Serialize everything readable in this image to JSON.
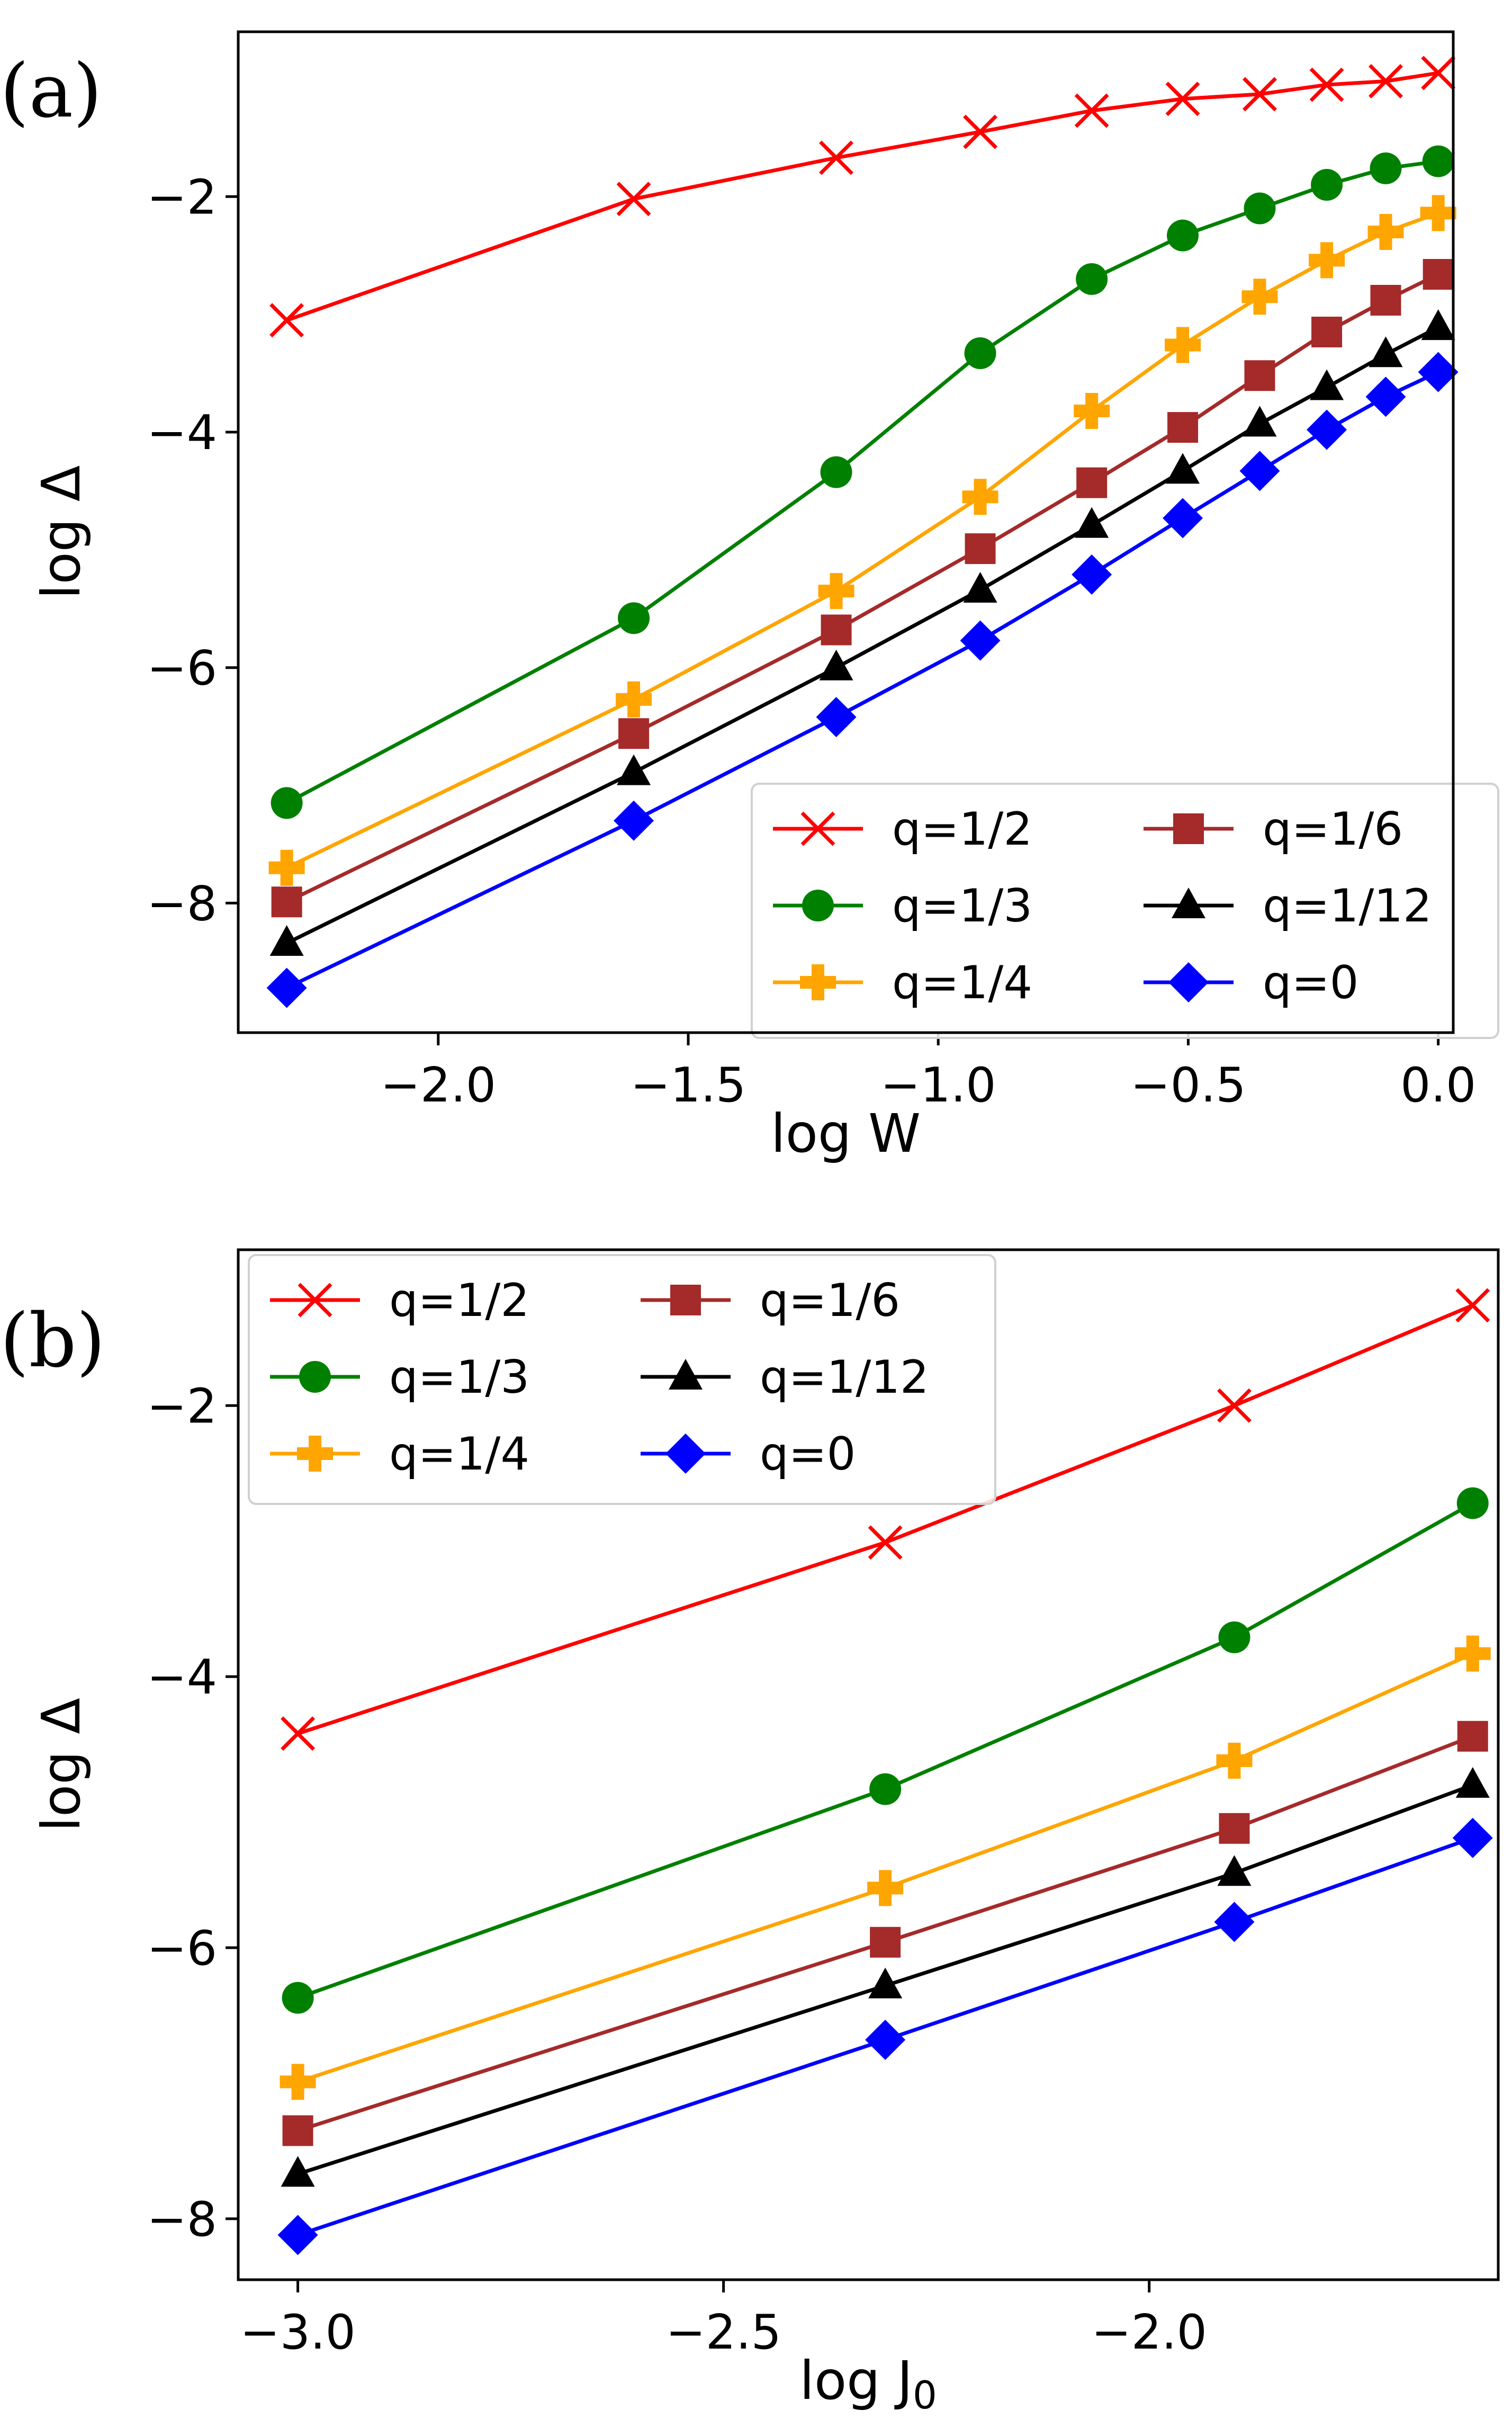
{
  "chart_data": [
    {
      "type": "line",
      "panel_label": "(a)",
      "xlabel": "log W",
      "ylabel": "log Δ",
      "xlim": [
        -2.4,
        0.03
      ],
      "ylim": [
        -9.1,
        -0.6
      ],
      "xticks": [
        -2.0,
        -1.5,
        -1.0,
        -0.5,
        0.0
      ],
      "xtick_labels": [
        "−2.0",
        "−1.5",
        "−1.0",
        "−0.5",
        "0.0"
      ],
      "yticks": [
        -8,
        -6,
        -4,
        -2
      ],
      "ytick_labels": [
        "−8",
        "−6",
        "−4",
        "−2"
      ],
      "legend_position": "lower-right",
      "legend_columns": 2,
      "x": [
        -2.303,
        -1.609,
        -1.204,
        -0.916,
        -0.693,
        -0.511,
        -0.357,
        -0.223,
        -0.105,
        0.0
      ],
      "series": [
        {
          "name": "q=1/2",
          "color": "#ff0000",
          "marker": "x",
          "values": [
            -3.05,
            -2.02,
            -1.67,
            -1.45,
            -1.27,
            -1.17,
            -1.13,
            -1.05,
            -1.02,
            -0.95
          ]
        },
        {
          "name": "q=1/3",
          "color": "#008000",
          "marker": "circle",
          "values": [
            -7.15,
            -5.58,
            -4.34,
            -3.33,
            -2.7,
            -2.33,
            -2.1,
            -1.9,
            -1.76,
            -1.7
          ]
        },
        {
          "name": "q=1/4",
          "color": "#ffa500",
          "marker": "plus",
          "values": [
            -7.7,
            -6.27,
            -5.35,
            -4.55,
            -3.82,
            -3.26,
            -2.85,
            -2.54,
            -2.3,
            -2.14
          ]
        },
        {
          "name": "q=1/6",
          "color": "#a52a2a",
          "marker": "square",
          "values": [
            -7.99,
            -6.56,
            -5.68,
            -4.99,
            -4.43,
            -3.96,
            -3.52,
            -3.15,
            -2.88,
            -2.66
          ]
        },
        {
          "name": "q=1/12",
          "color": "#000000",
          "marker": "triangle",
          "values": [
            -8.34,
            -6.89,
            -6.0,
            -5.34,
            -4.79,
            -4.33,
            -3.93,
            -3.62,
            -3.34,
            -3.11
          ]
        },
        {
          "name": "q=0",
          "color": "#0000ff",
          "marker": "diamond",
          "values": [
            -8.72,
            -7.3,
            -6.42,
            -5.77,
            -5.21,
            -4.73,
            -4.33,
            -3.98,
            -3.7,
            -3.49
          ]
        }
      ]
    },
    {
      "type": "line",
      "panel_label": "(b)",
      "xlabel": "log J",
      "xlabel_sub": "0",
      "ylabel": "log Δ",
      "xlim": [
        -3.07,
        -1.59
      ],
      "ylim": [
        -8.45,
        -0.85
      ],
      "xticks": [
        -3.0,
        -2.5,
        -2.0
      ],
      "xtick_labels": [
        "−3.0",
        "−2.5",
        "−2.0"
      ],
      "yticks": [
        -8,
        -6,
        -4,
        -2
      ],
      "ytick_labels": [
        "−8",
        "−6",
        "−4",
        "−2"
      ],
      "legend_position": "upper-left",
      "legend_columns": 2,
      "x": [
        -3.0,
        -2.31,
        -1.9,
        -1.62
      ],
      "series": [
        {
          "name": "q=1/2",
          "color": "#ff0000",
          "marker": "x",
          "values": [
            -4.42,
            -3.01,
            -2.0,
            -1.26
          ]
        },
        {
          "name": "q=1/3",
          "color": "#008000",
          "marker": "circle",
          "values": [
            -6.37,
            -4.83,
            -3.71,
            -2.72
          ]
        },
        {
          "name": "q=1/4",
          "color": "#ffa500",
          "marker": "plus",
          "values": [
            -6.99,
            -5.56,
            -4.62,
            -3.83
          ]
        },
        {
          "name": "q=1/6",
          "color": "#a52a2a",
          "marker": "square",
          "values": [
            -7.35,
            -5.96,
            -5.12,
            -4.44
          ]
        },
        {
          "name": "q=1/12",
          "color": "#000000",
          "marker": "triangle",
          "values": [
            -7.67,
            -6.28,
            -5.45,
            -4.8
          ]
        },
        {
          "name": "q=0",
          "color": "#0000ff",
          "marker": "diamond",
          "values": [
            -8.12,
            -6.68,
            -5.81,
            -5.19
          ]
        }
      ]
    }
  ]
}
